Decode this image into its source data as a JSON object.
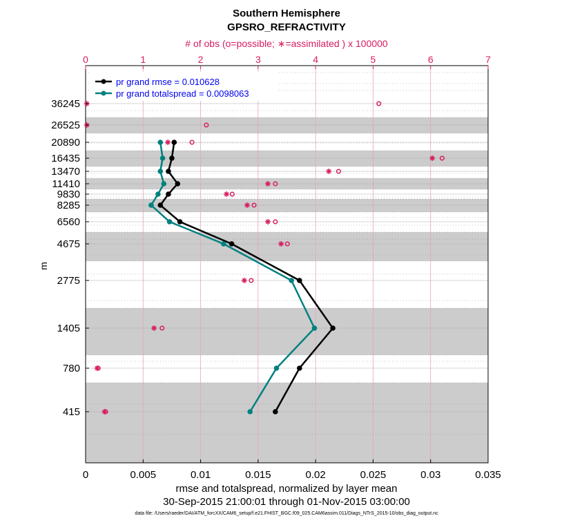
{
  "chart_data": {
    "type": "line",
    "title": "Southern Hemisphere",
    "subtitle": "GPSRO_REFRACTIVITY",
    "top_axis_label": "# of obs (o=possible; ∗=assimilated ) x 100000",
    "top_axis_range": [
      0,
      7
    ],
    "top_axis_ticks": [
      "0",
      "1",
      "2",
      "3",
      "4",
      "5",
      "6",
      "7"
    ],
    "xlabel": "rmse and totalspread, normalized by layer mean",
    "date_range": "30-Sep-2015 21:00:01 through 01-Nov-2015 03:00:00",
    "footnote": "data file: /Users/raeder/DAI/ATM_forcXX/CAM6_setup/f.e21.FHIST_BGC.f09_025.CAM6assim.011/Diags_NTrS_2015-10/obs_diag_output.nc",
    "ylabel": "m",
    "xlim": [
      0,
      0.035
    ],
    "x_ticks": [
      "0",
      "0.005",
      "0.01",
      "0.015",
      "0.02",
      "0.025",
      "0.03",
      "0.035"
    ],
    "levels": [
      "36245",
      "26525",
      "20890",
      "16435",
      "13470",
      "11410",
      "9830",
      "8285",
      "6560",
      "4675",
      "2775",
      "1405",
      "780",
      "415"
    ],
    "series": [
      {
        "name": "pr grand rmse = 0.010628",
        "color": "#000000",
        "values": [
          null,
          null,
          0.0077,
          0.0075,
          0.0072,
          0.008,
          0.0072,
          0.0065,
          0.0082,
          0.0127,
          0.0186,
          0.0215,
          0.0186,
          0.0165
        ]
      },
      {
        "name": "pr grand totalspread = 0.0098063",
        "color": "#00807f",
        "values": [
          null,
          null,
          0.0065,
          0.0067,
          0.0065,
          0.0068,
          0.0063,
          0.0057,
          0.0073,
          0.012,
          0.0179,
          0.0199,
          0.0166,
          0.0143
        ]
      }
    ],
    "obs_possible_x100000": [
      5.1,
      2.1,
      1.85,
      6.2,
      4.4,
      3.3,
      2.55,
      2.93,
      3.3,
      3.51,
      2.88,
      1.33,
      0.22,
      0.35
    ],
    "obs_assimilated_x100000": [
      0.02,
      0.02,
      1.43,
      6.03,
      4.23,
      3.17,
      2.45,
      2.81,
      3.17,
      3.4,
      2.76,
      1.19,
      0.2,
      0.33
    ]
  }
}
